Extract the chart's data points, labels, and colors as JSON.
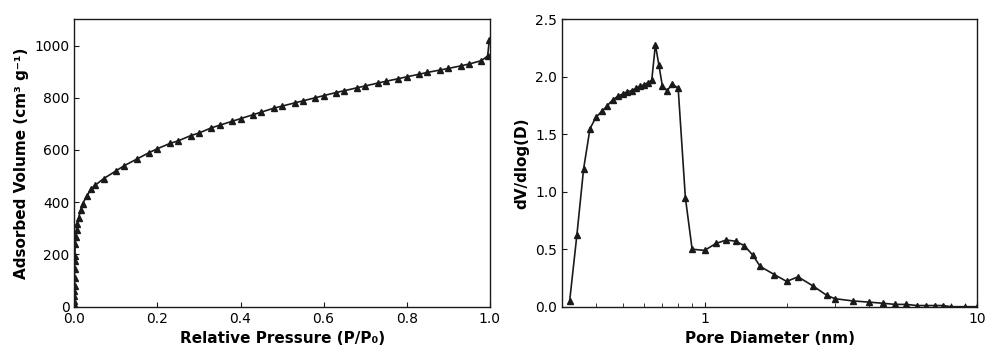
{
  "line_color": "#1a1a1a",
  "marker": "^",
  "markersize": 5,
  "linewidth": 1.2,
  "figure_bg": "#ffffff",
  "axes_bg": "#ffffff",
  "tick_color": "#1a1a1a",
  "label_fontsize": 11,
  "tick_fontsize": 10,
  "left": {
    "xlabel": "Relative Pressure (P/P₀)",
    "ylabel": "Adsorbed Volume (cm³ g⁻¹)",
    "xlim": [
      0.0,
      1.0
    ],
    "ylim": [
      0,
      1100
    ],
    "yticks": [
      0,
      200,
      400,
      600,
      800,
      1000
    ],
    "xticks": [
      0.0,
      0.2,
      0.4,
      0.6,
      0.8,
      1.0
    ],
    "x": [
      1e-06,
      5e-06,
      1e-05,
      3e-05,
      7e-05,
      0.0001,
      0.0002,
      0.0003,
      0.0005,
      0.0008,
      0.001,
      0.002,
      0.003,
      0.005,
      0.007,
      0.01,
      0.015,
      0.02,
      0.03,
      0.04,
      0.05,
      0.07,
      0.1,
      0.12,
      0.15,
      0.18,
      0.2,
      0.23,
      0.25,
      0.28,
      0.3,
      0.33,
      0.35,
      0.38,
      0.4,
      0.43,
      0.45,
      0.48,
      0.5,
      0.53,
      0.55,
      0.58,
      0.6,
      0.63,
      0.65,
      0.68,
      0.7,
      0.73,
      0.75,
      0.78,
      0.8,
      0.83,
      0.85,
      0.88,
      0.9,
      0.93,
      0.95,
      0.98,
      0.995,
      0.999
    ],
    "y": [
      0,
      5,
      10,
      20,
      40,
      60,
      80,
      110,
      145,
      175,
      195,
      240,
      265,
      295,
      315,
      340,
      370,
      395,
      425,
      450,
      465,
      490,
      520,
      540,
      565,
      590,
      605,
      625,
      635,
      655,
      665,
      685,
      695,
      710,
      720,
      735,
      745,
      760,
      768,
      780,
      788,
      800,
      808,
      820,
      827,
      838,
      845,
      856,
      863,
      873,
      880,
      890,
      897,
      906,
      912,
      922,
      929,
      942,
      960,
      1020
    ]
  },
  "right": {
    "xlabel": "Pore Diameter (nm)",
    "ylabel": "dV/dlog(D)",
    "xlim_log": [
      0.3,
      10
    ],
    "ylim": [
      0.0,
      2.5
    ],
    "yticks": [
      0.0,
      0.5,
      1.0,
      1.5,
      2.0,
      2.5
    ],
    "x": [
      0.32,
      0.34,
      0.36,
      0.38,
      0.4,
      0.42,
      0.44,
      0.46,
      0.48,
      0.5,
      0.52,
      0.54,
      0.56,
      0.58,
      0.6,
      0.62,
      0.64,
      0.66,
      0.68,
      0.7,
      0.73,
      0.76,
      0.8,
      0.85,
      0.9,
      1.0,
      1.1,
      1.2,
      1.3,
      1.4,
      1.5,
      1.6,
      1.8,
      2.0,
      2.2,
      2.5,
      2.8,
      3.0,
      3.5,
      4.0,
      4.5,
      5.0,
      5.5,
      6.0,
      6.5,
      7.0,
      7.5,
      8.0,
      9.0,
      10.0
    ],
    "y": [
      0.05,
      0.62,
      1.2,
      1.55,
      1.65,
      1.7,
      1.75,
      1.8,
      1.83,
      1.85,
      1.87,
      1.88,
      1.9,
      1.92,
      1.93,
      1.95,
      1.97,
      2.28,
      2.1,
      1.92,
      1.88,
      1.94,
      1.9,
      0.95,
      0.5,
      0.49,
      0.55,
      0.58,
      0.57,
      0.53,
      0.45,
      0.35,
      0.28,
      0.22,
      0.26,
      0.18,
      0.1,
      0.07,
      0.05,
      0.04,
      0.03,
      0.02,
      0.02,
      0.01,
      0.01,
      0.01,
      0.01,
      0.0,
      0.0,
      0.0
    ]
  }
}
